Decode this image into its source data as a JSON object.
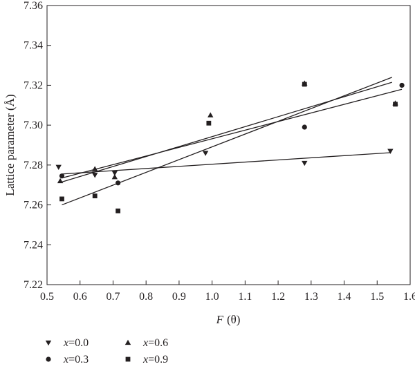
{
  "chart_data": {
    "type": "scatter",
    "xlabel_var": "F",
    "xlabel_arg": "(θ)",
    "ylabel": "Lattice parameter (Å)",
    "xlim": [
      0.5,
      1.6
    ],
    "ylim": [
      7.22,
      7.36
    ],
    "xticks": [
      "0.5",
      "0.6",
      "0.7",
      "0.8",
      "0.9",
      "1.0",
      "1.1",
      "1.2",
      "1.3",
      "1.4",
      "1.5",
      "1.6"
    ],
    "yticks": [
      "7.22",
      "7.24",
      "7.26",
      "7.28",
      "7.30",
      "7.32",
      "7.34",
      "7.36"
    ],
    "grid": false,
    "legend_position": "bottom-left",
    "series": [
      {
        "name": "x=0.0",
        "var": "x",
        "value": "=0.0",
        "marker": "triangle-down",
        "points": [
          [
            0.535,
            7.279
          ],
          [
            0.645,
            7.275
          ],
          [
            0.705,
            7.276
          ],
          [
            0.98,
            7.286
          ],
          [
            1.28,
            7.281
          ],
          [
            1.54,
            7.287
          ]
        ],
        "fit": [
          [
            0.545,
            7.2755
          ],
          [
            1.54,
            7.2862
          ]
        ]
      },
      {
        "name": "x=0.3",
        "var": "x",
        "value": "=0.3",
        "marker": "circle",
        "points": [
          [
            0.545,
            7.2745
          ],
          [
            0.715,
            7.271
          ],
          [
            1.28,
            7.299
          ],
          [
            1.575,
            7.32
          ]
        ],
        "fit": [
          [
            0.545,
            7.26
          ],
          [
            1.545,
            7.324
          ]
        ]
      },
      {
        "name": "x=0.6",
        "var": "x",
        "value": "=0.6",
        "marker": "triangle-up",
        "points": [
          [
            0.54,
            7.272
          ],
          [
            0.645,
            7.278
          ],
          [
            0.705,
            7.274
          ],
          [
            0.995,
            7.305
          ],
          [
            1.28,
            7.321
          ],
          [
            1.555,
            7.311
          ]
        ],
        "fit": [
          [
            0.545,
            7.2715
          ],
          [
            1.545,
            7.3215
          ]
        ]
      },
      {
        "name": "x=0.9",
        "var": "x",
        "value": "=0.9",
        "marker": "square",
        "points": [
          [
            0.545,
            7.263
          ],
          [
            0.645,
            7.2645
          ],
          [
            0.715,
            7.257
          ],
          [
            0.99,
            7.301
          ],
          [
            1.28,
            7.3205
          ],
          [
            1.555,
            7.3105
          ]
        ],
        "fit": [
          [
            0.545,
            7.2735
          ],
          [
            1.575,
            7.318
          ]
        ]
      }
    ]
  }
}
